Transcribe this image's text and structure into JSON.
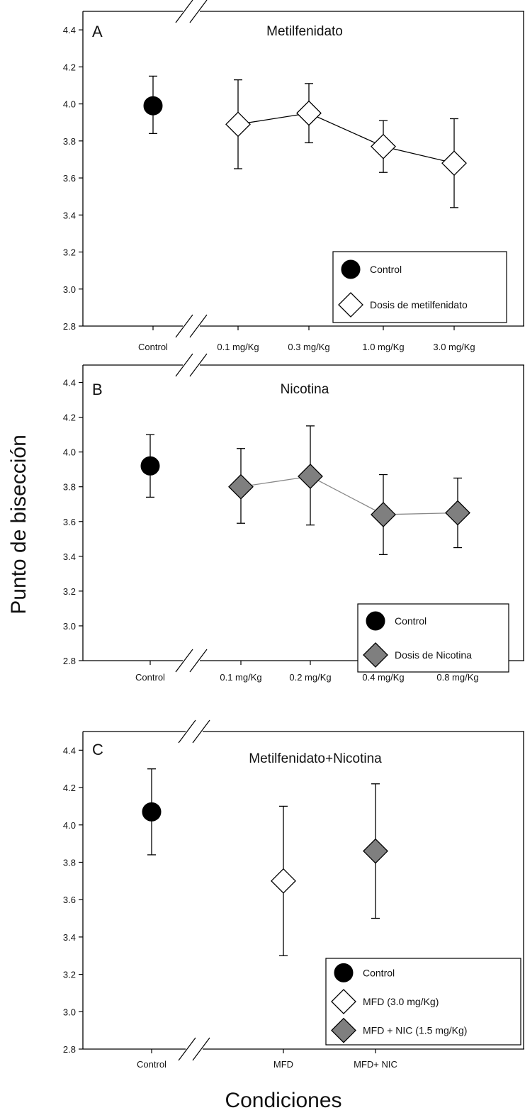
{
  "figure": {
    "ylabel": "Punto de bisección",
    "xlabel": "Condiciones"
  },
  "colors": {
    "control": "#000000",
    "mfd": "#ffffff",
    "nic": "#7f7f7f",
    "line_a": "#000000",
    "line_b": "#888888"
  },
  "chart_data": [
    {
      "type": "scatter",
      "panel": "A",
      "title": "Metilfenidato",
      "ylim": [
        2.8,
        4.5
      ],
      "yticks": [
        "2.8",
        "3.0",
        "3.2",
        "3.4",
        "3.6",
        "3.8",
        "4.0",
        "4.2",
        "4.4"
      ],
      "categories": [
        "Control",
        "0.1 mg/Kg",
        "0.3 mg/Kg",
        "1.0 mg/Kg",
        "3.0 mg/Kg"
      ],
      "series": [
        {
          "name": "Control",
          "marker": "circle",
          "color": "#000000",
          "connected": false,
          "points": [
            {
              "cat": 0,
              "y": 3.99,
              "lo": 3.84,
              "hi": 4.15
            }
          ]
        },
        {
          "name": "Dosis de metilfenidato",
          "marker": "diamond",
          "color": "#ffffff",
          "connected": true,
          "points": [
            {
              "cat": 1,
              "y": 3.89,
              "lo": 3.65,
              "hi": 4.13
            },
            {
              "cat": 2,
              "y": 3.95,
              "lo": 3.79,
              "hi": 4.11
            },
            {
              "cat": 3,
              "y": 3.77,
              "lo": 3.63,
              "hi": 3.91
            },
            {
              "cat": 4,
              "y": 3.68,
              "lo": 3.44,
              "hi": 3.92
            }
          ]
        }
      ],
      "legend": [
        "Control",
        "Dosis de metilfenidato"
      ]
    },
    {
      "type": "scatter",
      "panel": "B",
      "title": "Nicotina",
      "ylim": [
        2.8,
        4.5
      ],
      "yticks": [
        "2.8",
        "3.0",
        "3.2",
        "3.4",
        "3.6",
        "3.8",
        "4.0",
        "4.2",
        "4.4"
      ],
      "categories": [
        "Control",
        "0.1 mg/Kg",
        "0.2 mg/Kg",
        "0.4 mg/Kg",
        "0.8 mg/Kg"
      ],
      "series": [
        {
          "name": "Control",
          "marker": "circle",
          "color": "#000000",
          "connected": false,
          "points": [
            {
              "cat": 0,
              "y": 3.92,
              "lo": 3.74,
              "hi": 4.1
            }
          ]
        },
        {
          "name": "Dosis de Nicotina",
          "marker": "diamond",
          "color": "#7f7f7f",
          "connected": true,
          "points": [
            {
              "cat": 1,
              "y": 3.8,
              "lo": 3.59,
              "hi": 4.02
            },
            {
              "cat": 2,
              "y": 3.86,
              "lo": 3.58,
              "hi": 4.15
            },
            {
              "cat": 3,
              "y": 3.64,
              "lo": 3.41,
              "hi": 3.87
            },
            {
              "cat": 4,
              "y": 3.65,
              "lo": 3.45,
              "hi": 3.85
            }
          ]
        }
      ],
      "legend": [
        "Control",
        "Dosis de Nicotina"
      ]
    },
    {
      "type": "scatter",
      "panel": "C",
      "title": "Metilfenidato+Nicotina",
      "ylim": [
        2.8,
        4.5
      ],
      "yticks": [
        "2.8",
        "3.0",
        "3.2",
        "3.4",
        "3.6",
        "3.8",
        "4.0",
        "4.2",
        "4.4"
      ],
      "categories": [
        "Control",
        "MFD",
        "MFD+ NIC"
      ],
      "series": [
        {
          "name": "Control",
          "marker": "circle",
          "color": "#000000",
          "connected": false,
          "points": [
            {
              "cat": 0,
              "y": 4.07,
              "lo": 3.84,
              "hi": 4.3
            }
          ]
        },
        {
          "name": "MFD (3.0 mg/Kg)",
          "marker": "diamond",
          "color": "#ffffff",
          "connected": false,
          "points": [
            {
              "cat": 1,
              "y": 3.7,
              "lo": 3.3,
              "hi": 4.1
            }
          ]
        },
        {
          "name": "MFD + NIC (1.5 mg/Kg)",
          "marker": "diamond",
          "color": "#7f7f7f",
          "connected": false,
          "points": [
            {
              "cat": 2,
              "y": 3.86,
              "lo": 3.5,
              "hi": 4.22
            }
          ]
        }
      ],
      "legend": [
        "Control",
        "MFD (3.0 mg/Kg)",
        "MFD + NIC (1.5 mg/Kg)"
      ]
    }
  ]
}
